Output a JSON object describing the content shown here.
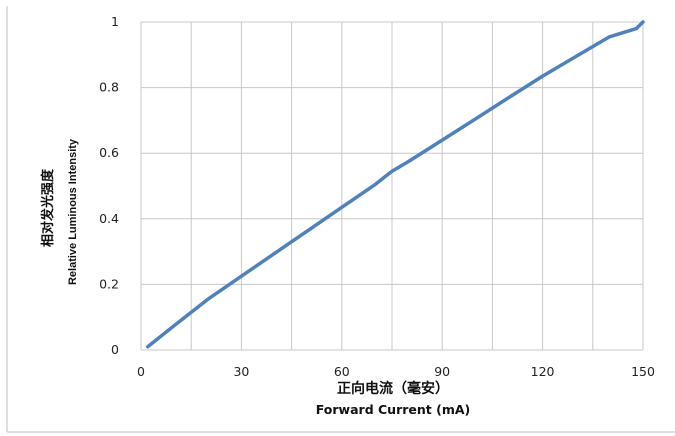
{
  "chart_data": {
    "type": "line",
    "title": "",
    "xlabel_cn": "正向电流（毫安）",
    "xlabel": "Forward Current (mA)",
    "ylabel_cn": "相对发光强度",
    "ylabel": "Relative Luminous Intensity",
    "xlim": [
      0,
      150
    ],
    "ylim": [
      0,
      1
    ],
    "x_ticks": [
      0,
      30,
      60,
      90,
      120,
      150
    ],
    "x_tick_labels": [
      "0",
      "30",
      "60",
      "90",
      "120",
      "150"
    ],
    "y_ticks": [
      0,
      0.2,
      0.4,
      0.6,
      0.8,
      1
    ],
    "y_tick_labels": [
      "0",
      "0.2",
      "0.4",
      "0.6",
      "0.8",
      "1"
    ],
    "x_grid_step": 15,
    "grid": true,
    "line_color": "#4f81bd",
    "series": [
      {
        "x": [
          2,
          10,
          20,
          30,
          40,
          50,
          60,
          70,
          75,
          80,
          90,
          100,
          110,
          120,
          130,
          140,
          148,
          150
        ],
        "values": [
          0.01,
          0.075,
          0.155,
          0.225,
          0.295,
          0.365,
          0.435,
          0.505,
          0.545,
          0.575,
          0.64,
          0.705,
          0.77,
          0.835,
          0.895,
          0.955,
          0.98,
          1.0
        ]
      }
    ]
  }
}
